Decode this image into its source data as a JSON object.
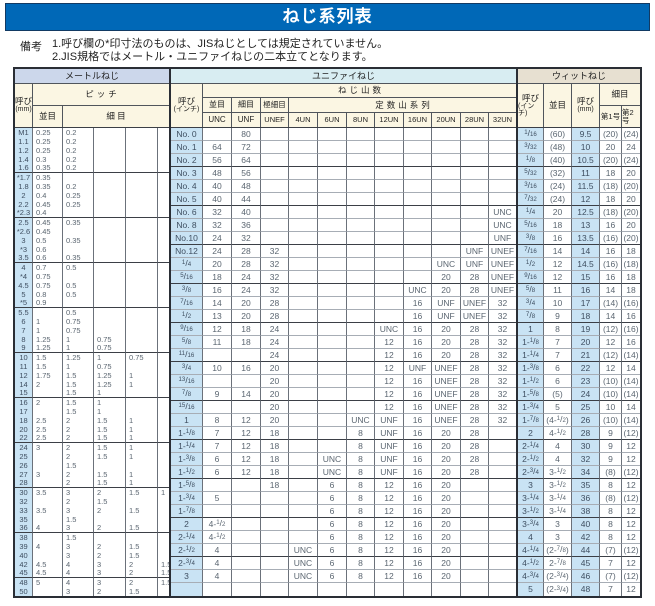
{
  "title": "ねじ系列表",
  "notes": {
    "label": "備考",
    "lines": [
      "1.呼び欄の*印寸法のものは、JISねじとしては規定されていません。",
      "2.JIS規格ではメートル・ユニファイねじの二本立てとなります。"
    ]
  },
  "colors": {
    "title_bar": "#0068b7",
    "metric_header": "#ccd7eb",
    "unified_header": "#d8edf2",
    "whitworth_header": "#e7e0d1",
    "sub_header": "#fbf6e3",
    "key_cell": "#c9e3f4"
  },
  "metric": {
    "section_title": "メートルねじ",
    "headers": {
      "size": "呼び",
      "size_unit": "(mm)",
      "pitch": "ピッチ",
      "coarse": "並目",
      "fine": "細 目"
    },
    "group_size": 5,
    "rows": [
      [
        "M1",
        "0.25",
        "0.2",
        "",
        "",
        ""
      ],
      [
        "1.1",
        "0.25",
        "0.2",
        "",
        "",
        ""
      ],
      [
        "1.2",
        "0.25",
        "0.2",
        "",
        "",
        ""
      ],
      [
        "1.4",
        "0.3",
        "0.2",
        "",
        "",
        ""
      ],
      [
        "1.6",
        "0.35",
        "0.2",
        "",
        "",
        ""
      ],
      [
        "*1.7",
        "0.35",
        "",
        "",
        "",
        ""
      ],
      [
        "1.8",
        "0.35",
        "0.2",
        "",
        "",
        ""
      ],
      [
        "2",
        "0.4",
        "0.25",
        "",
        "",
        ""
      ],
      [
        "2.2",
        "0.45",
        "0.25",
        "",
        "",
        ""
      ],
      [
        "*2.3",
        "0.4",
        "",
        "",
        "",
        ""
      ],
      [
        "2.5",
        "0.45",
        "0.35",
        "",
        "",
        ""
      ],
      [
        "*2.6",
        "0.45",
        "",
        "",
        "",
        ""
      ],
      [
        "3",
        "0.5",
        "0.35",
        "",
        "",
        ""
      ],
      [
        "*3",
        "0.6",
        "",
        "",
        "",
        ""
      ],
      [
        "3.5",
        "0.6",
        "0.35",
        "",
        "",
        ""
      ],
      [
        "4",
        "0.7",
        "0.5",
        "",
        "",
        ""
      ],
      [
        "*4",
        "0.75",
        "",
        "",
        "",
        ""
      ],
      [
        "4.5",
        "0.75",
        "0.5",
        "",
        "",
        ""
      ],
      [
        "5",
        "0.8",
        "0.5",
        "",
        "",
        ""
      ],
      [
        "*5",
        "0.9",
        "",
        "",
        "",
        ""
      ],
      [
        "5.5",
        "",
        "0.5",
        "",
        "",
        ""
      ],
      [
        "6",
        "1",
        "0.75",
        "",
        "",
        ""
      ],
      [
        "7",
        "1",
        "0.75",
        "",
        "",
        ""
      ],
      [
        "8",
        "1.25",
        "1",
        "0.75",
        "",
        ""
      ],
      [
        "9",
        "1.25",
        "1",
        "0.75",
        "",
        ""
      ],
      [
        "10",
        "1.5",
        "1.25",
        "1",
        "0.75",
        ""
      ],
      [
        "11",
        "1.5",
        "1",
        "0.75",
        "",
        ""
      ],
      [
        "12",
        "1.75",
        "1.5",
        "1.25",
        "1",
        ""
      ],
      [
        "14",
        "2",
        "1.5",
        "1.25",
        "1",
        ""
      ],
      [
        "15",
        "",
        "1.5",
        "1",
        "",
        ""
      ],
      [
        "16",
        "2",
        "1.5",
        "1",
        "",
        ""
      ],
      [
        "17",
        "",
        "1.5",
        "1",
        "",
        ""
      ],
      [
        "18",
        "2.5",
        "2",
        "1.5",
        "1",
        ""
      ],
      [
        "20",
        "2.5",
        "2",
        "1.5",
        "1",
        ""
      ],
      [
        "22",
        "2.5",
        "2",
        "1.5",
        "1",
        ""
      ],
      [
        "24",
        "3",
        "2",
        "1.5",
        "1",
        ""
      ],
      [
        "25",
        "",
        "2",
        "1.5",
        "1",
        ""
      ],
      [
        "26",
        "",
        "1.5",
        "",
        "",
        ""
      ],
      [
        "27",
        "3",
        "2",
        "1.5",
        "1",
        ""
      ],
      [
        "28",
        "",
        "2",
        "1.5",
        "1",
        ""
      ],
      [
        "30",
        "3.5",
        "3",
        "2",
        "1.5",
        "1"
      ],
      [
        "32",
        "",
        "2",
        "1.5",
        "",
        ""
      ],
      [
        "33",
        "3.5",
        "3",
        "2",
        "1.5",
        ""
      ],
      [
        "35",
        "",
        "1.5",
        "",
        "",
        ""
      ],
      [
        "36",
        "4",
        "3",
        "2",
        "1.5",
        ""
      ],
      [
        "38",
        "",
        "1.5",
        "",
        "",
        ""
      ],
      [
        "39",
        "4",
        "3",
        "2",
        "1.5",
        ""
      ],
      [
        "40",
        "",
        "3",
        "2",
        "1.5",
        ""
      ],
      [
        "42",
        "4.5",
        "4",
        "3",
        "2",
        "1.5"
      ],
      [
        "45",
        "4.5",
        "4",
        "3",
        "2",
        "1.5"
      ],
      [
        "48",
        "5",
        "4",
        "3",
        "2",
        "1.5"
      ],
      [
        "50",
        "",
        "3",
        "2",
        "1.5",
        ""
      ]
    ]
  },
  "unified": {
    "section_title": "ユニファイねじ",
    "headers": {
      "size": "呼び",
      "size_unit": "(インチ)",
      "threads": "ねじ山数",
      "coarse": "並目",
      "fine": "細目",
      "extra_fine": "極細目",
      "unc": "UNC",
      "unf": "UNF",
      "unef": "UNEF",
      "constant": "定数山系列",
      "un_cols": [
        "4UN",
        "6UN",
        "8UN",
        "12UN",
        "16UN",
        "20UN",
        "28UN",
        "32UN"
      ]
    },
    "group_size": 3,
    "rows": [
      [
        "No. 0",
        "",
        "80",
        "",
        "",
        "",
        "",
        "",
        "",
        "",
        "",
        ""
      ],
      [
        "No. 1",
        "64",
        "72",
        "",
        "",
        "",
        "",
        "",
        "",
        "",
        "",
        ""
      ],
      [
        "No. 2",
        "56",
        "64",
        "",
        "",
        "",
        "",
        "",
        "",
        "",
        "",
        ""
      ],
      [
        "No. 3",
        "48",
        "56",
        "",
        "",
        "",
        "",
        "",
        "",
        "",
        "",
        ""
      ],
      [
        "No. 4",
        "40",
        "48",
        "",
        "",
        "",
        "",
        "",
        "",
        "",
        "",
        ""
      ],
      [
        "No. 5",
        "40",
        "44",
        "",
        "",
        "",
        "",
        "",
        "",
        "",
        "",
        ""
      ],
      [
        "No. 6",
        "32",
        "40",
        "",
        "",
        "",
        "",
        "",
        "",
        "",
        "",
        "UNC"
      ],
      [
        "No. 8",
        "32",
        "36",
        "",
        "",
        "",
        "",
        "",
        "",
        "",
        "",
        "UNC"
      ],
      [
        "No.10",
        "24",
        "32",
        "",
        "",
        "",
        "",
        "",
        "",
        "",
        "",
        "UNF"
      ],
      [
        "No.12",
        "24",
        "28",
        "32",
        "",
        "",
        "",
        "",
        "",
        "",
        "UNF",
        "UNEF"
      ],
      [
        "1/4",
        "20",
        "28",
        "32",
        "",
        "",
        "",
        "",
        "",
        "UNC",
        "UNF",
        "UNEF"
      ],
      [
        "5/16",
        "18",
        "24",
        "32",
        "",
        "",
        "",
        "",
        "",
        "20",
        "28",
        "UNEF"
      ],
      [
        "3/8",
        "16",
        "24",
        "32",
        "",
        "",
        "",
        "",
        "UNC",
        "20",
        "28",
        "UNEF"
      ],
      [
        "7/16",
        "14",
        "20",
        "28",
        "",
        "",
        "",
        "",
        "16",
        "UNF",
        "UNEF",
        "32"
      ],
      [
        "1/2",
        "13",
        "20",
        "28",
        "",
        "",
        "",
        "",
        "16",
        "UNF",
        "UNEF",
        "32"
      ],
      [
        "9/16",
        "12",
        "18",
        "24",
        "",
        "",
        "",
        "UNC",
        "16",
        "20",
        "28",
        "32"
      ],
      [
        "5/8",
        "11",
        "18",
        "24",
        "",
        "",
        "",
        "12",
        "16",
        "20",
        "28",
        "32"
      ],
      [
        "11/16",
        "",
        "",
        "24",
        "",
        "",
        "",
        "12",
        "16",
        "20",
        "28",
        "32"
      ],
      [
        "3/4",
        "10",
        "16",
        "20",
        "",
        "",
        "",
        "12",
        "UNF",
        "UNEF",
        "28",
        "32"
      ],
      [
        "13/16",
        "",
        "",
        "20",
        "",
        "",
        "",
        "12",
        "16",
        "UNEF",
        "28",
        "32"
      ],
      [
        "7/8",
        "9",
        "14",
        "20",
        "",
        "",
        "",
        "12",
        "16",
        "UNEF",
        "28",
        "32"
      ],
      [
        "15/16",
        "",
        "",
        "20",
        "",
        "",
        "",
        "12",
        "16",
        "UNEF",
        "28",
        "32"
      ],
      [
        "1",
        "8",
        "12",
        "20",
        "",
        "",
        "UNC",
        "UNF",
        "16",
        "UNEF",
        "28",
        "32"
      ],
      [
        "1-1/8",
        "7",
        "12",
        "18",
        "",
        "",
        "8",
        "UNF",
        "16",
        "20",
        "28",
        ""
      ],
      [
        "1-1/4",
        "7",
        "12",
        "18",
        "",
        "",
        "8",
        "UNF",
        "16",
        "20",
        "28",
        ""
      ],
      [
        "1-3/8",
        "6",
        "12",
        "18",
        "",
        "UNC",
        "8",
        "UNF",
        "16",
        "20",
        "28",
        ""
      ],
      [
        "1-1/2",
        "6",
        "12",
        "18",
        "",
        "UNC",
        "8",
        "UNF",
        "16",
        "20",
        "28",
        ""
      ],
      [
        "1-5/8",
        "",
        "",
        "18",
        "",
        "6",
        "8",
        "12",
        "16",
        "20",
        "",
        ""
      ],
      [
        "1-3/4",
        "5",
        "",
        "",
        "",
        "6",
        "8",
        "12",
        "16",
        "20",
        "",
        ""
      ],
      [
        "1-7/8",
        "",
        "",
        "",
        "",
        "6",
        "8",
        "12",
        "16",
        "20",
        "",
        ""
      ],
      [
        "2",
        "4-1/2",
        "",
        "",
        "",
        "6",
        "8",
        "12",
        "16",
        "20",
        "",
        ""
      ],
      [
        "2-1/4",
        "4-1/2",
        "",
        "",
        "",
        "6",
        "8",
        "12",
        "16",
        "20",
        "",
        ""
      ],
      [
        "2-1/2",
        "4",
        "",
        "",
        "UNC",
        "6",
        "8",
        "12",
        "16",
        "20",
        "",
        ""
      ],
      [
        "2-3/4",
        "4",
        "",
        "",
        "UNC",
        "6",
        "8",
        "12",
        "16",
        "20",
        "",
        ""
      ],
      [
        "3",
        "4",
        "",
        "",
        "UNC",
        "6",
        "8",
        "12",
        "16",
        "20",
        "",
        ""
      ]
    ]
  },
  "whitworth": {
    "section_title": "ウィットねじ",
    "headers": {
      "size_inch": "呼び",
      "size_inch_unit": "(インチ)",
      "coarse": "並目",
      "size_mm": "呼び",
      "size_mm_unit": "(mm)",
      "fine": "細目",
      "no1": "第1号",
      "no2": "第2号"
    },
    "group_size": 3,
    "rows": [
      [
        "1/16",
        "(60)",
        "9.5",
        "(20)",
        "(24)"
      ],
      [
        "3/32",
        "(48)",
        "10",
        "20",
        "24"
      ],
      [
        "1/8",
        "(40)",
        "10.5",
        "(20)",
        "(24)"
      ],
      [
        "5/32",
        "(32)",
        "11",
        "18",
        "20"
      ],
      [
        "3/16",
        "(24)",
        "11.5",
        "(18)",
        "(20)"
      ],
      [
        "7/32",
        "(24)",
        "12",
        "18",
        "20"
      ],
      [
        "1/4",
        "20",
        "12.5",
        "(18)",
        "(20)"
      ],
      [
        "5/16",
        "18",
        "13",
        "16",
        "20"
      ],
      [
        "3/8",
        "16",
        "13.5",
        "(16)",
        "(20)"
      ],
      [
        "7/16",
        "14",
        "14",
        "16",
        "18"
      ],
      [
        "1/2",
        "12",
        "14.5",
        "(16)",
        "(18)"
      ],
      [
        "9/16",
        "12",
        "15",
        "16",
        "18"
      ],
      [
        "5/8",
        "11",
        "16",
        "14",
        "18"
      ],
      [
        "3/4",
        "10",
        "17",
        "(14)",
        "(16)"
      ],
      [
        "7/8",
        "9",
        "18",
        "14",
        "16"
      ],
      [
        "1",
        "8",
        "19",
        "(12)",
        "(16)"
      ],
      [
        "1-1/8",
        "7",
        "20",
        "12",
        "16"
      ],
      [
        "1-1/4",
        "7",
        "21",
        "(12)",
        "(14)"
      ],
      [
        "1-3/8",
        "6",
        "22",
        "12",
        "14"
      ],
      [
        "1-1/2",
        "6",
        "23",
        "(10)",
        "(14)"
      ],
      [
        "1-5/8",
        "(5)",
        "24",
        "(10)",
        "(14)"
      ],
      [
        "1-3/4",
        "5",
        "25",
        "10",
        "14"
      ],
      [
        "1-7/8",
        "(4-1/2)",
        "26",
        "(10)",
        "(14)"
      ],
      [
        "2",
        "4-1/2",
        "28",
        "9",
        "(12)"
      ],
      [
        "2-1/4",
        "4",
        "30",
        "9",
        "12"
      ],
      [
        "2-1/2",
        "4",
        "32",
        "9",
        "12"
      ],
      [
        "2-3/4",
        "3-1/2",
        "34",
        "(8)",
        "(12)"
      ],
      [
        "3",
        "3-1/2",
        "35",
        "8",
        "12"
      ],
      [
        "3-1/4",
        "3-1/4",
        "36",
        "(8)",
        "(12)"
      ],
      [
        "3-1/2",
        "3-1/4",
        "38",
        "8",
        "12"
      ],
      [
        "3-3/4",
        "3",
        "40",
        "8",
        "12"
      ],
      [
        "4",
        "3",
        "42",
        "8",
        "12"
      ],
      [
        "4-1/4",
        "(2-7/8)",
        "44",
        "(7)",
        "(12)"
      ],
      [
        "4-1/2",
        "2-7/8",
        "45",
        "7",
        "12"
      ],
      [
        "4-3/4",
        "(2-3/4)",
        "46",
        "(7)",
        "(12)"
      ],
      [
        "5",
        "(2-3/4)",
        "48",
        "7",
        "12"
      ]
    ]
  }
}
